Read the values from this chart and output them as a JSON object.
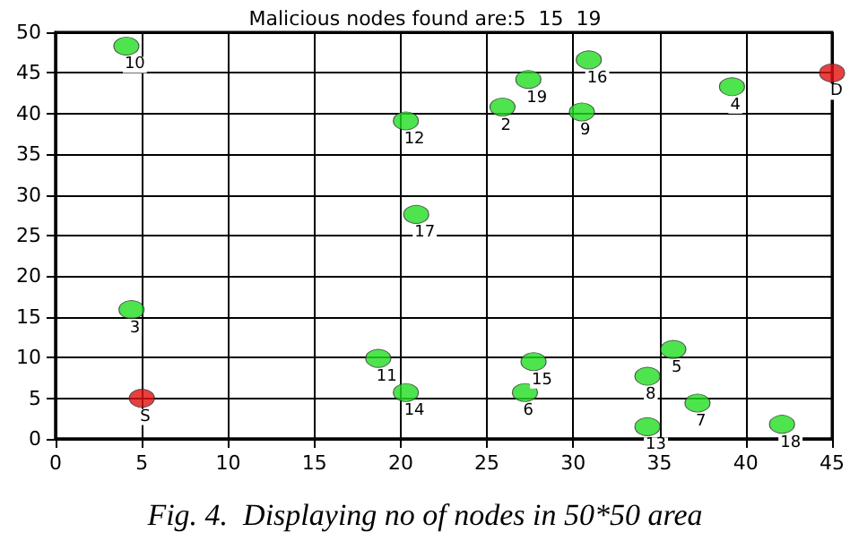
{
  "chart_data": {
    "type": "scatter",
    "title": "Malicious nodes found are:5  15  19",
    "series": [
      {
        "color": "#22dd22",
        "x": [
          4.1,
          20.3,
          20.9,
          25.9,
          27.4,
          30.9,
          30.5,
          39.2,
          4.4,
          18.7,
          20.3,
          27.7,
          27.2,
          34.3,
          35.8,
          37.2,
          34.3,
          42.1
        ],
        "values": [
          48.3,
          39.1,
          27.6,
          40.8,
          44.2,
          46.6,
          40.2,
          43.3,
          15.9,
          9.9,
          5.7,
          9.5,
          5.7,
          7.7,
          11.0,
          4.4,
          1.5,
          1.8
        ]
      },
      {
        "color": "#e01010",
        "x": [
          45,
          5
        ],
        "values": [
          45,
          5
        ]
      }
    ],
    "annotations": [
      {
        "text": "10",
        "x": 4.1,
        "y": 48.3
      },
      {
        "text": "12",
        "x": 20.3,
        "y": 39.1
      },
      {
        "text": "17",
        "x": 20.9,
        "y": 27.6
      },
      {
        "text": "2",
        "x": 25.9,
        "y": 40.8
      },
      {
        "text": "19",
        "x": 27.4,
        "y": 44.2
      },
      {
        "text": "16",
        "x": 30.9,
        "y": 46.6
      },
      {
        "text": "9",
        "x": 30.5,
        "y": 40.2
      },
      {
        "text": "4",
        "x": 39.2,
        "y": 43.3
      },
      {
        "text": "3",
        "x": 4.4,
        "y": 15.9
      },
      {
        "text": "11",
        "x": 18.7,
        "y": 9.9
      },
      {
        "text": "14",
        "x": 20.3,
        "y": 5.7
      },
      {
        "text": "15",
        "x": 27.7,
        "y": 9.5
      },
      {
        "text": "6",
        "x": 27.2,
        "y": 5.7
      },
      {
        "text": "8",
        "x": 34.3,
        "y": 7.7
      },
      {
        "text": "5",
        "x": 35.8,
        "y": 11.0
      },
      {
        "text": "7",
        "x": 37.2,
        "y": 4.4
      },
      {
        "text": "13",
        "x": 34.3,
        "y": 1.5
      },
      {
        "text": "18",
        "x": 42.1,
        "y": 1.8
      },
      {
        "text": "D",
        "x": 45,
        "y": 45
      },
      {
        "text": "S",
        "x": 5,
        "y": 5
      },
      "Fig. 4.  Displaying no of nodes in 50*50 area"
    ],
    "xlim": [
      0,
      45
    ],
    "xticks": [
      0,
      5,
      10,
      15,
      20,
      25,
      30,
      35,
      40,
      45
    ],
    "ylim": [
      0,
      50
    ],
    "yticks": [
      0,
      5,
      10,
      15,
      20,
      25,
      30,
      35,
      40,
      45,
      50
    ],
    "grid": true,
    "marker": "circle"
  }
}
